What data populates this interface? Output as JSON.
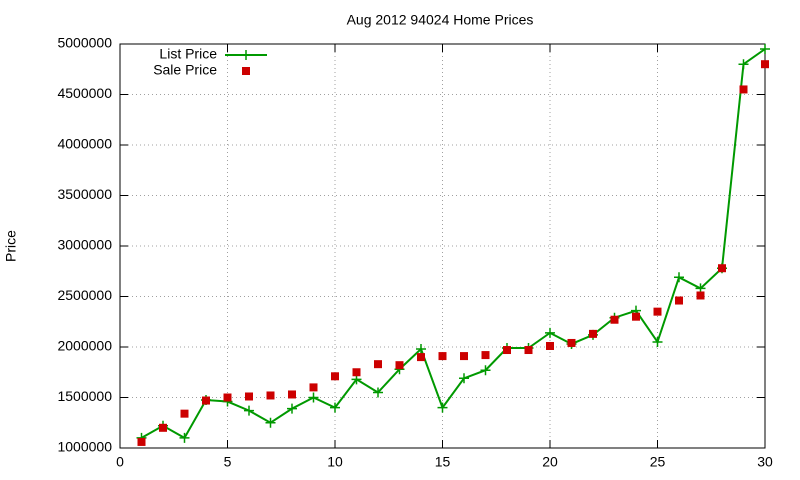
{
  "chart_data": {
    "type": "line",
    "title": "Aug 2012 94024 Home Prices",
    "y_label": "Price",
    "x": [
      1,
      2,
      3,
      4,
      5,
      6,
      7,
      8,
      9,
      10,
      11,
      12,
      13,
      14,
      15,
      16,
      17,
      18,
      19,
      20,
      21,
      22,
      23,
      24,
      25,
      26,
      27,
      28,
      29,
      30
    ],
    "series": [
      {
        "name": "List Price",
        "color": "#009900",
        "mode": "linespoints",
        "values": [
          1100000,
          1220000,
          1100000,
          1475000,
          1460000,
          1370000,
          1250000,
          1390000,
          1500000,
          1400000,
          1680000,
          1550000,
          1780000,
          1980000,
          1400000,
          1690000,
          1770000,
          1990000,
          1990000,
          2140000,
          2030000,
          2120000,
          2290000,
          2360000,
          2050000,
          2690000,
          2580000,
          2780000,
          4800000,
          4950000
        ]
      },
      {
        "name": "Sale Price",
        "color": "#cc0000",
        "mode": "points",
        "values": [
          1060000,
          1200000,
          1340000,
          1470000,
          1500000,
          1510000,
          1520000,
          1530000,
          1600000,
          1710000,
          1750000,
          1830000,
          1820000,
          1900000,
          1910000,
          1910000,
          1920000,
          1970000,
          1970000,
          2010000,
          2040000,
          2130000,
          2270000,
          2300000,
          2350000,
          2460000,
          2510000,
          2780000,
          4550000,
          4800000
        ]
      }
    ],
    "xlim": [
      0,
      30
    ],
    "xticks": [
      0,
      5,
      10,
      15,
      20,
      25,
      30
    ],
    "ylim": [
      1000000,
      5000000
    ],
    "yticks": [
      1000000,
      1500000,
      2000000,
      2500000,
      3000000,
      3500000,
      4000000,
      4500000,
      5000000
    ],
    "grid": true,
    "legend": "top-left"
  }
}
